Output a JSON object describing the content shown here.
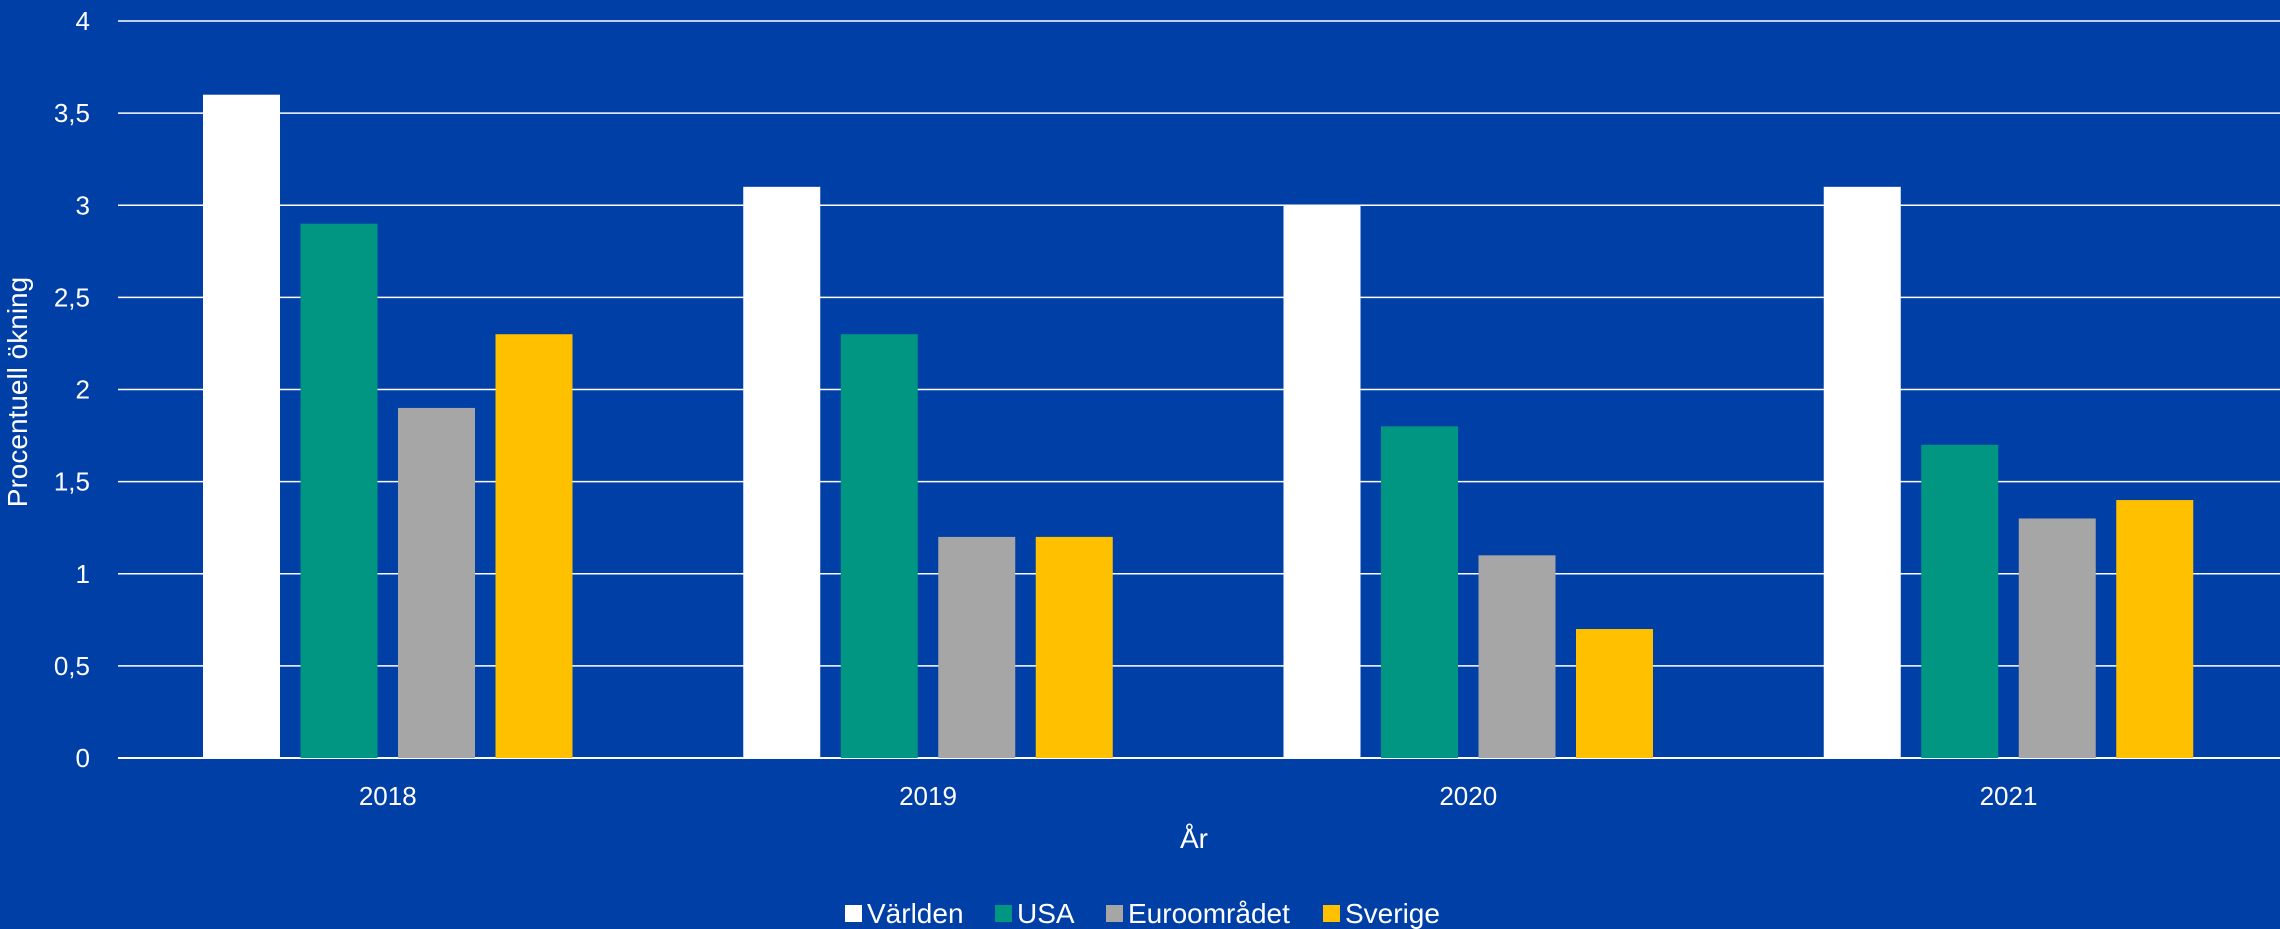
{
  "background_color": "#003fa5",
  "chart_data": {
    "type": "bar",
    "categories": [
      "2018",
      "2019",
      "2020",
      "2021"
    ],
    "series": [
      {
        "name": "Världen",
        "color": "#ffffff",
        "values": [
          3.6,
          3.1,
          3.0,
          3.1
        ]
      },
      {
        "name": "USA",
        "color": "#009681",
        "values": [
          2.9,
          2.3,
          1.8,
          1.7
        ]
      },
      {
        "name": "Euroområdet",
        "color": "#a6a6a6",
        "values": [
          1.9,
          1.2,
          1.1,
          1.3
        ]
      },
      {
        "name": "Sverige",
        "color": "#ffc000",
        "values": [
          2.3,
          1.2,
          0.7,
          1.4
        ]
      }
    ],
    "xlabel": "År",
    "ylabel": "Procentuell ökning",
    "ylim": [
      0,
      4
    ],
    "yticks": [
      0,
      0.5,
      1,
      1.5,
      2,
      2.5,
      3,
      3.5,
      4
    ],
    "ytick_labels": [
      "0",
      "0,5",
      "1",
      "1,5",
      "2",
      "2,5",
      "3",
      "3,5",
      "4"
    ],
    "grid": true,
    "grid_color": "#ffffff",
    "legend_position": "bottom-center"
  }
}
